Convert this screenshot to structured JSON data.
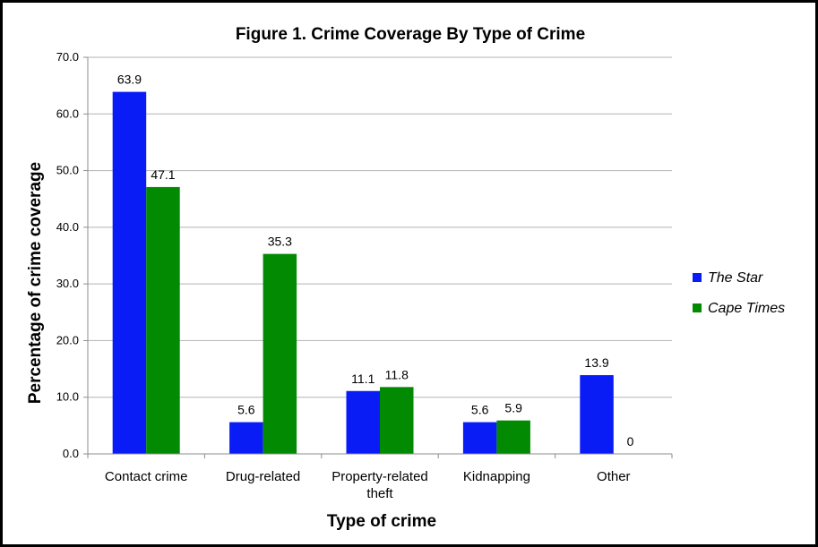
{
  "chart_data": {
    "type": "bar",
    "title": "Figure 1. Crime Coverage By Type of Crime",
    "xlabel": "Type of crime",
    "ylabel": "Percentage of crime coverage",
    "categories": [
      [
        "Contact crime"
      ],
      [
        "Drug-related"
      ],
      [
        "Property-related",
        "theft"
      ],
      [
        "Kidnapping"
      ],
      [
        "Other"
      ]
    ],
    "series": [
      {
        "name": "The Star",
        "color": "#0a1cf5",
        "values": [
          63.9,
          5.6,
          11.1,
          5.6,
          13.9
        ],
        "labels": [
          "63.9",
          "5.6",
          "11.1",
          "5.6",
          "13.9"
        ]
      },
      {
        "name": "Cape Times",
        "color": "#028a02",
        "values": [
          47.1,
          35.3,
          11.8,
          5.9,
          0
        ],
        "labels": [
          "47.1",
          "35.3",
          "11.8",
          "5.9",
          "0"
        ]
      }
    ],
    "ylim": [
      0,
      70
    ],
    "yticks": [
      "0.0",
      "10.0",
      "20.0",
      "30.0",
      "40.0",
      "50.0",
      "60.0",
      "70.0"
    ],
    "grid": true,
    "legend_position": "right"
  }
}
